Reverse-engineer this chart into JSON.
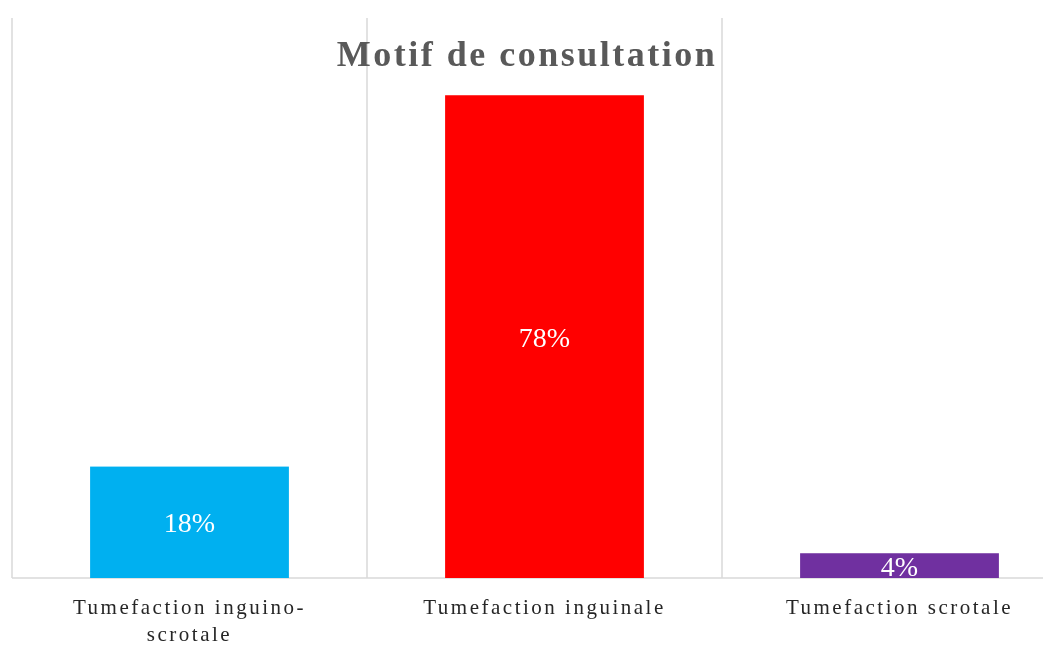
{
  "chart_data": {
    "type": "bar",
    "title": "Motif de consultation",
    "categories": [
      "Tumefaction inguino-scrotale",
      "Tumefaction inguinale",
      "Tumefaction scrotale"
    ],
    "values": [
      18,
      78,
      4
    ],
    "colors": [
      "#00b0f0",
      "#ff0000",
      "#7030a0"
    ],
    "value_labels": [
      "18%",
      "78%",
      "4%"
    ],
    "grid": "x"
  }
}
